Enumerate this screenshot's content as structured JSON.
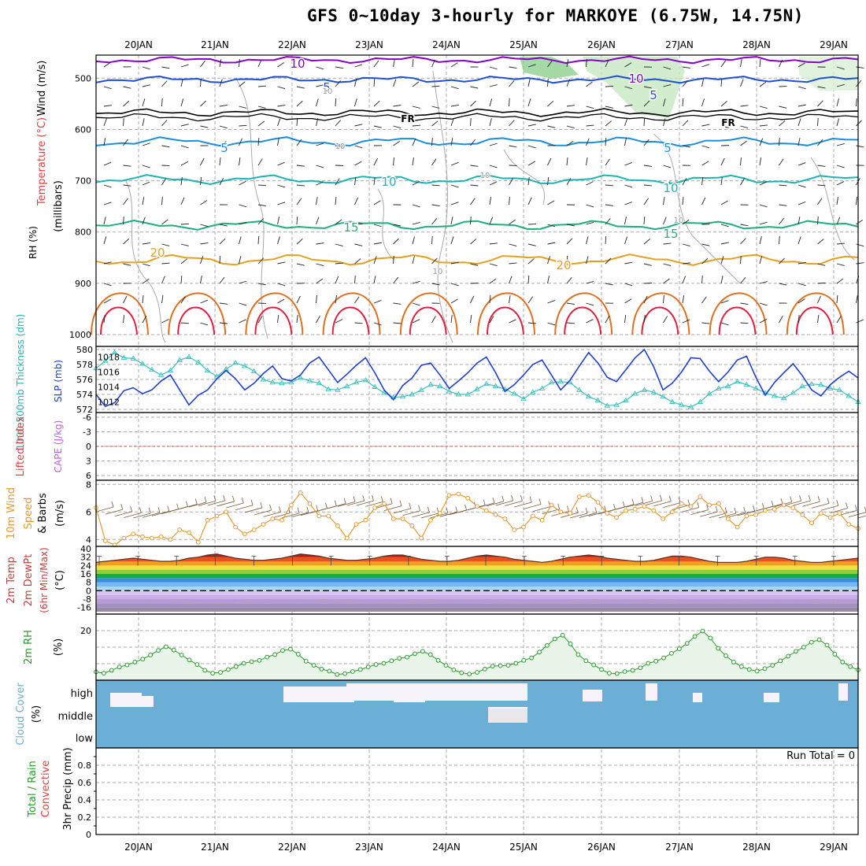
{
  "title": "GFS 0~10day 3-hourly for MARKOYE (6.75W, 14.75N)",
  "dates": [
    "20JAN",
    "21JAN",
    "22JAN",
    "23JAN",
    "24JAN",
    "25JAN",
    "26JAN",
    "27JAN",
    "28JAN",
    "29JAN"
  ],
  "colors": {
    "purple": "#8800cc",
    "blue": "#1f4fd6",
    "skyblue": "#1a8fe0",
    "teal": "#1ab5b5",
    "green": "#1db07a",
    "orange": "#e6a020",
    "darkorange": "#e07020",
    "red": "#e02040",
    "magenta": "#cc00aa",
    "cloud": "#6baed6",
    "rhfill": "#e8f5e8",
    "rhline": "#2a9a2a",
    "wind": "#e69a30",
    "thick": "#3cc0c0",
    "slp": "#1f3fd0"
  },
  "panels": {
    "upper": {
      "ylabels": {
        "rh": "RH (%)",
        "temp": "Temperature (°C)",
        "wind": "Wind (m/s)",
        "units": "(millibars)"
      },
      "ticks": [
        "500",
        "600",
        "700",
        "800",
        "900",
        "1000"
      ],
      "contour_labels": [
        "10",
        "10",
        "5",
        "5",
        "FR",
        "FR",
        "5",
        "5",
        "10",
        "10",
        "15",
        "15",
        "20",
        "20",
        "10",
        "10",
        "10",
        "10",
        "10"
      ]
    },
    "thickness": {
      "ylabels": {
        "left": "1000-500mb Thickness (dm)",
        "right": "SLP (mb)"
      },
      "left_ticks": [
        "580",
        "578",
        "576",
        "574",
        "572"
      ],
      "right_ticks": [
        "1018",
        "1016",
        "1014",
        "1012"
      ]
    },
    "cape": {
      "ylabels": {
        "left": "Lifted Index",
        "right": "CAPE (J/kg)"
      },
      "left_ticks": [
        "-6",
        "-3",
        "0",
        "3",
        "6"
      ]
    },
    "wind10": {
      "ylabels": {
        "a": "10m Wind",
        "b": "Speed",
        "c": "& Barbs",
        "d": "(m/s)"
      },
      "ticks": [
        "8",
        "6",
        "4"
      ]
    },
    "temp2m": {
      "ylabels": {
        "a": "2m Temp",
        "b": "2m DewPt",
        "c": "(6hr Min/Max)",
        "d": "(°C)"
      },
      "ticks": [
        "40",
        "32",
        "24",
        "16",
        "8",
        "0",
        "-8",
        "-16"
      ]
    },
    "rh2m": {
      "ylabels": {
        "a": "2m RH",
        "b": "(%)"
      },
      "ticks": [
        "20"
      ]
    },
    "cloud": {
      "ylabels": {
        "a": "Cloud Cover",
        "b": "(%)"
      },
      "ticks": [
        "high",
        "middle",
        "low"
      ]
    },
    "precip": {
      "ylabels": {
        "a": "Total / Rain",
        "b": "Convective",
        "c": "3hr Precip (mm)"
      },
      "ticks": [
        "0.8",
        "0.6",
        "0.4",
        "0.2",
        "0"
      ],
      "run_total": "Run Total = 0"
    }
  },
  "chart_data": [
    {
      "type": "line",
      "title": "",
      "xlabel": "",
      "ylabel": "1000-500mb Thickness (dm)",
      "series": [
        {
          "name": "1000-500mb Thickness",
          "values": [
            577.5,
            578.5,
            579.6,
            578.9,
            578.8,
            578.1,
            577.3,
            576.6,
            577.2,
            578.6,
            579.0,
            578.3,
            577.2,
            576.4,
            577.4,
            578.2,
            577.8,
            577.1,
            576.0,
            575.6,
            575.5,
            575.6,
            576.2,
            575.8,
            575.5,
            574.7,
            574.6,
            575.1,
            575.6,
            575.9,
            575.0,
            574.2,
            573.6,
            573.7,
            574.0,
            574.6,
            575.3,
            575.1,
            574.4,
            574.0,
            574.0,
            574.7,
            575.4,
            575.1,
            574.7,
            574.1,
            573.4,
            574.3,
            574.8,
            575.6,
            575.7,
            575.6,
            574.6,
            573.7,
            573.2,
            572.5,
            572.6,
            573.2,
            574.1,
            574.6,
            574.3,
            573.7,
            573.0,
            572.6,
            572.3,
            573.0,
            574.1,
            574.8,
            575.1,
            575.7,
            575.3,
            574.8,
            574.2,
            573.8,
            573.5,
            574.2,
            575.1,
            575.4,
            575.3,
            574.8,
            574.6,
            573.8,
            573.0
          ]
        }
      ],
      "ylim": [
        572,
        580
      ]
    },
    {
      "type": "line",
      "title": "",
      "xlabel": "",
      "ylabel": "SLP (mb)",
      "series": [
        {
          "name": "SLP",
          "values": [
            1013.0,
            1011.4,
            1011.9,
            1013.5,
            1013.9,
            1013.1,
            1013.6,
            1014.8,
            1015.6,
            1013.6,
            1011.6,
            1012.9,
            1013.6,
            1015.1,
            1016.2,
            1015.1,
            1013.6,
            1014.5,
            1015.8,
            1016.8,
            1015.1,
            1014.8,
            1015.6,
            1017.2,
            1018.0,
            1016.3,
            1014.6,
            1015.7,
            1016.9,
            1017.9,
            1015.9,
            1013.6,
            1012.3,
            1014.2,
            1015.2,
            1016.9,
            1017.2,
            1015.6,
            1013.8,
            1014.8,
            1015.9,
            1017.2,
            1018.0,
            1015.9,
            1013.4,
            1014.3,
            1015.6,
            1017.0,
            1017.6,
            1015.6,
            1013.6,
            1014.9,
            1016.8,
            1018.6,
            1017.2,
            1015.3,
            1014.7,
            1016.3,
            1017.9,
            1019.0,
            1016.7,
            1013.6,
            1014.5,
            1016.0,
            1017.9,
            1017.8,
            1016.1,
            1014.7,
            1016.0,
            1017.6,
            1018.1,
            1015.3,
            1012.9,
            1014.6,
            1015.9,
            1017.1,
            1015.5,
            1013.6,
            1012.8,
            1014.3,
            1015.3,
            1016.1,
            1015.2
          ]
        }
      ],
      "ylim": [
        1011,
        1019
      ]
    },
    {
      "type": "line",
      "title": "",
      "xlabel": "",
      "ylabel": "Speed (m/s)",
      "series": [
        {
          "name": "10m Wind Speed",
          "values": [
            6.3,
            3.9,
            3.6,
            4.1,
            4.4,
            4.2,
            4.1,
            4.2,
            4.0,
            4.7,
            4.5,
            3.8,
            5.4,
            5.7,
            6.0,
            4.9,
            4.4,
            4.7,
            5.1,
            5.5,
            5.4,
            6.5,
            7.4,
            6.6,
            5.7,
            5.7,
            5.0,
            4.1,
            5.1,
            5.4,
            6.3,
            6.6,
            5.5,
            5.5,
            5.0,
            4.1,
            5.4,
            5.9,
            7.2,
            7.3,
            7.0,
            6.4,
            6.1,
            5.8,
            5.5,
            4.7,
            4.9,
            5.7,
            5.4,
            6.5,
            6.0,
            5.9,
            7.1,
            7.2,
            6.7,
            5.9,
            5.6,
            6.1,
            6.2,
            6.4,
            6.1,
            5.5,
            6.0,
            6.6,
            6.4,
            7.1,
            6.5,
            6.6,
            5.5,
            4.9,
            5.7,
            5.8,
            6.1,
            6.2,
            6.5,
            6.3,
            5.8,
            5.2,
            5.9,
            5.6,
            5.9,
            5.1,
            4.8
          ]
        }
      ],
      "ylim": [
        3.5,
        8.3
      ]
    },
    {
      "type": "area",
      "title": "",
      "xlabel": "",
      "ylabel": "2m Temp (°C)",
      "series": [
        {
          "name": "2m Temp",
          "values": [
            27,
            28,
            29,
            30,
            31,
            30,
            29,
            28,
            28,
            29,
            31,
            32,
            34,
            35,
            33,
            31,
            30,
            29,
            29,
            30,
            31,
            33,
            35,
            34,
            33,
            31,
            30,
            29,
            29,
            30,
            31,
            33,
            34,
            34,
            32,
            30,
            29,
            28,
            28,
            29,
            31,
            33,
            34,
            33,
            32,
            30,
            29,
            28,
            27,
            28,
            30,
            32,
            33,
            34,
            33,
            31,
            30,
            29,
            28,
            28,
            29,
            31,
            33,
            33,
            32,
            30,
            28,
            27,
            27,
            27,
            28,
            30,
            32,
            32,
            31,
            29,
            28,
            27,
            27,
            28,
            29,
            30,
            31
          ]
        }
      ],
      "ylim": [
        -20,
        40
      ]
    },
    {
      "type": "area",
      "title": "",
      "xlabel": "",
      "ylabel": "2m RH (%)",
      "series": [
        {
          "name": "2m RH",
          "values": [
            10.0,
            9.7,
            10.4,
            11.2,
            11.7,
            12.4,
            13.1,
            14.1,
            15.2,
            16.1,
            15.3,
            14.1,
            12.9,
            11.8,
            10.4,
            9.7,
            9.9,
            10.6,
            11.3,
            12.1,
            12.5,
            12.8,
            13.6,
            14.2,
            15.2,
            15.5,
            14.3,
            12.6,
            11.6,
            10.7,
            10.2,
            9.4,
            9.6,
            10.1,
            10.6,
            11.2,
            11.8,
            12.1,
            12.7,
            13.3,
            13.6,
            14.4,
            15.0,
            14.2,
            12.8,
            11.6,
            10.5,
            9.8,
            9.5,
            9.9,
            10.7,
            11.4,
            11.5,
            11.6,
            12.1,
            12.8,
            13.4,
            14.8,
            16.4,
            18.0,
            18.9,
            16.8,
            14.2,
            12.7,
            11.7,
            10.6,
            9.7,
            9.6,
            10.1,
            10.4,
            11.0,
            12.1,
            12.6,
            13.4,
            14.5,
            15.6,
            16.9,
            18.6,
            19.9,
            18.2,
            15.7,
            13.9,
            12.4,
            11.3,
            10.6,
            10.2,
            10.8,
            11.6,
            12.7,
            13.8,
            15.0,
            16.0,
            17.2,
            17.8,
            16.5,
            14.3,
            12.4,
            11.3,
            10.5
          ]
        }
      ],
      "ylim": [
        8,
        24
      ]
    }
  ]
}
